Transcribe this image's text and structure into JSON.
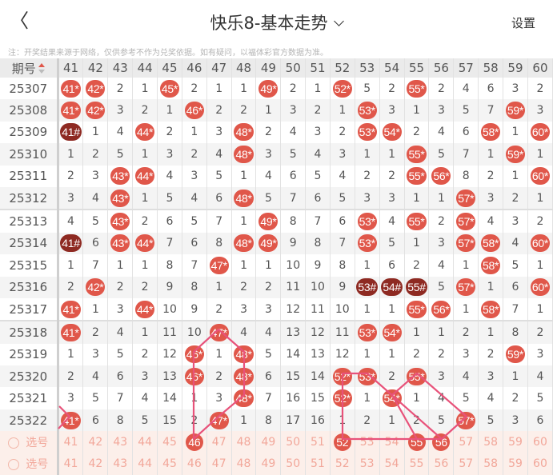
{
  "header": {
    "back_icon": "chevron-left-icon",
    "title": "快乐8-基本走势",
    "settings_label": "设置"
  },
  "note": "注：开奖结果来源于网络，仅供参考不作为兑奖依据。如有疑问，以福体彩官方数据为准。",
  "table": {
    "period_header": "期号",
    "columns": [
      "41",
      "42",
      "43",
      "44",
      "45",
      "46",
      "47",
      "48",
      "49",
      "50",
      "51",
      "52",
      "53",
      "54",
      "55",
      "56",
      "57",
      "58",
      "59",
      "60"
    ],
    "rows": [
      {
        "period": "25307",
        "cells": [
          "41*",
          "42*",
          "2",
          "1",
          "45*",
          "2",
          "1",
          "1",
          "49*",
          "2",
          "1",
          "52*",
          "5",
          "2",
          "55*",
          "2",
          "4",
          "6",
          "3",
          "2"
        ]
      },
      {
        "period": "25308",
        "cells": [
          "41*",
          "42*",
          "3",
          "2",
          "1",
          "46*",
          "2",
          "2",
          "1",
          "3",
          "2",
          "1",
          "53*",
          "3",
          "1",
          "3",
          "5",
          "7",
          "59*",
          "3"
        ]
      },
      {
        "period": "25309",
        "cells": [
          "41#",
          "1",
          "4",
          "44*",
          "2",
          "1",
          "3",
          "48*",
          "2",
          "4",
          "3",
          "2",
          "53*",
          "54*",
          "2",
          "4",
          "6",
          "58*",
          "1",
          "60*"
        ]
      },
      {
        "period": "25310",
        "cells": [
          "1",
          "2",
          "5",
          "1",
          "3",
          "2",
          "4",
          "48*",
          "3",
          "5",
          "4",
          "3",
          "1",
          "1",
          "55*",
          "5",
          "7",
          "1",
          "59*",
          "1"
        ]
      },
      {
        "period": "25311",
        "cells": [
          "2",
          "3",
          "43*",
          "44*",
          "4",
          "3",
          "5",
          "1",
          "4",
          "6",
          "5",
          "4",
          "2",
          "2",
          "55*",
          "56*",
          "8",
          "2",
          "1",
          "60*"
        ]
      },
      {
        "period": "25312",
        "cells": [
          "3",
          "4",
          "43*",
          "1",
          "5",
          "4",
          "6",
          "48*",
          "5",
          "7",
          "6",
          "5",
          "3",
          "3",
          "1",
          "1",
          "57*",
          "3",
          "2",
          "1"
        ]
      },
      {
        "period": "25313",
        "cells": [
          "4",
          "5",
          "43*",
          "2",
          "6",
          "5",
          "7",
          "1",
          "49*",
          "8",
          "7",
          "6",
          "53*",
          "4",
          "55*",
          "2",
          "57*",
          "4",
          "3",
          "2"
        ]
      },
      {
        "period": "25314",
        "cells": [
          "41#",
          "6",
          "43*",
          "44*",
          "7",
          "6",
          "8",
          "48*",
          "49*",
          "9",
          "8",
          "7",
          "53*",
          "5",
          "1",
          "3",
          "57*",
          "58*",
          "4",
          "60*"
        ]
      },
      {
        "period": "25315",
        "cells": [
          "1",
          "7",
          "1",
          "1",
          "8",
          "7",
          "47*",
          "1",
          "1",
          "10",
          "9",
          "8",
          "1",
          "6",
          "2",
          "4",
          "1",
          "58*",
          "5",
          "1"
        ]
      },
      {
        "period": "25316",
        "cells": [
          "2",
          "42*",
          "2",
          "2",
          "9",
          "8",
          "1",
          "2",
          "2",
          "11",
          "10",
          "9",
          "53#",
          "54#",
          "55#",
          "5",
          "57*",
          "1",
          "6",
          "60*"
        ]
      },
      {
        "period": "25317",
        "cells": [
          "41*",
          "1",
          "3",
          "44*",
          "10",
          "9",
          "2",
          "3",
          "3",
          "12",
          "11",
          "10",
          "1",
          "1",
          "55*",
          "56*",
          "1",
          "58*",
          "7",
          "1"
        ]
      },
      {
        "period": "25318",
        "cells": [
          "41*",
          "2",
          "4",
          "1",
          "11",
          "10",
          "47*",
          "4",
          "4",
          "13",
          "12",
          "11",
          "53*",
          "54*",
          "1",
          "1",
          "2",
          "1",
          "8",
          "2"
        ]
      },
      {
        "period": "25319",
        "cells": [
          "1",
          "3",
          "5",
          "2",
          "12",
          "46*",
          "1",
          "48*",
          "5",
          "14",
          "13",
          "12",
          "1",
          "1",
          "2",
          "2",
          "3",
          "2",
          "59*",
          "3"
        ]
      },
      {
        "period": "25320",
        "cells": [
          "2",
          "4",
          "6",
          "3",
          "13",
          "46*",
          "2",
          "48*",
          "6",
          "15",
          "14",
          "52*",
          "53*",
          "2",
          "55*",
          "3",
          "4",
          "3",
          "1",
          "4"
        ]
      },
      {
        "period": "25321",
        "cells": [
          "3",
          "5",
          "7",
          "4",
          "14",
          "1",
          "3",
          "48*",
          "7",
          "16",
          "15",
          "52*",
          "1",
          "54*",
          "1",
          "4",
          "5",
          "4",
          "2",
          "5"
        ]
      },
      {
        "period": "25322",
        "cells": [
          "41*",
          "6",
          "8",
          "5",
          "15",
          "2",
          "47*",
          "1",
          "8",
          "17",
          "16",
          "1",
          "2",
          "1",
          "2",
          "5",
          "57*",
          "5",
          "3",
          "6"
        ]
      }
    ],
    "pick_rows": [
      {
        "label": "选号",
        "selected": [
          "46",
          "52",
          "55",
          "56"
        ]
      },
      {
        "label": "选号",
        "selected": []
      }
    ]
  },
  "colors": {
    "ball": "#e0574a",
    "ball_consecutive": "#8e2a22",
    "pick_row_bg": "#fcefea",
    "pick_text": "#f2a79a",
    "line": "#e8527a"
  }
}
